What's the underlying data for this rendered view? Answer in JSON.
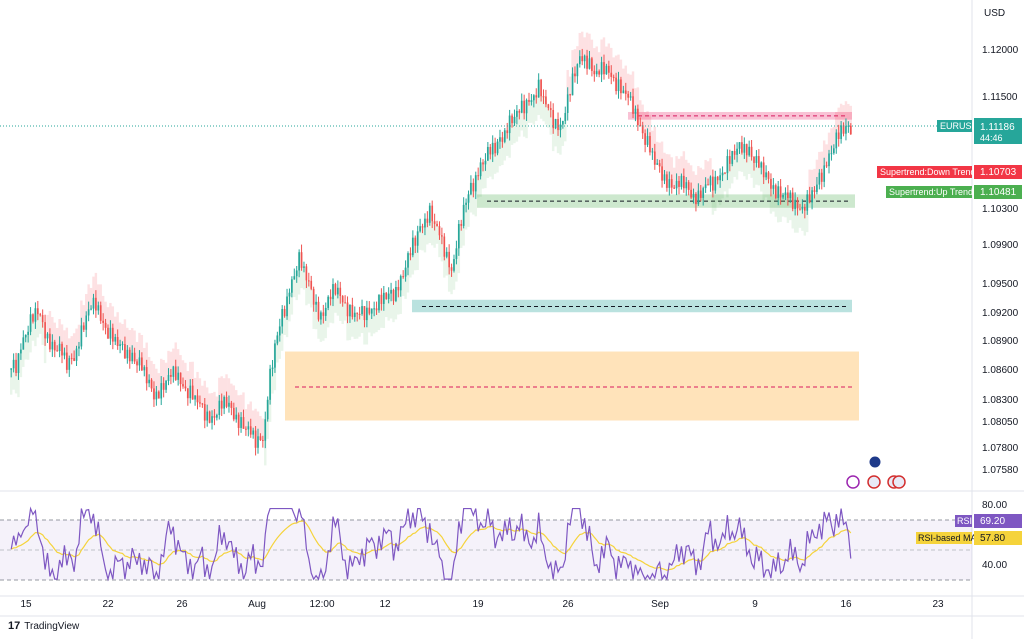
{
  "currency": "USD",
  "footer": {
    "logo": "17",
    "brand": "TradingView"
  },
  "price_axis": {
    "ticks": [
      "1.12000",
      "1.11500",
      "1.10300",
      "1.09900",
      "1.09500",
      "1.09200",
      "1.08900",
      "1.08600",
      "1.08300",
      "1.08050",
      "1.07800",
      "1.07580"
    ]
  },
  "rsi_axis": {
    "ticks": [
      "80.00",
      "40.00"
    ]
  },
  "time_axis": {
    "ticks": [
      "15",
      "22",
      "26",
      "Aug",
      "12:00",
      "12",
      "19",
      "26",
      "Sep",
      "9",
      "16",
      "23"
    ]
  },
  "labels": {
    "symbol": "EURUSD",
    "price": "1.11186",
    "countdown": "44:46",
    "down_trend_name": "Supertrend:Down Trend",
    "down_trend_value": "1.10703",
    "up_trend_name": "Supertrend:Up Trend",
    "up_trend_value": "1.10481",
    "rsi_name": "RSI",
    "rsi_value": "69.20",
    "rsi_ma_name": "RSI-based MA",
    "rsi_ma_value": "57.80"
  },
  "colors": {
    "up": "#26a69a",
    "down": "#ef5350",
    "supertrend_up": "#4caf50",
    "supertrend_down": "#f23645",
    "rsi": "#7e57c2",
    "rsi_ma": "#f5d33b",
    "zone_orange": "#ffe0b2",
    "zone_teal": "#b2dfdb",
    "zone_green": "#c8e6c9",
    "zone_pink": "#f8bbd0"
  },
  "chart_data": {
    "type": "candlestick",
    "symbol": "EURUSD",
    "ylim": [
      1.0752,
      1.123
    ],
    "rsi_ylim": [
      20,
      90
    ],
    "close_series": [
      1.087,
      1.09,
      1.0915,
      1.0925,
      1.0905,
      1.089,
      1.0885,
      1.087,
      1.088,
      1.0905,
      1.0925,
      1.0935,
      1.0915,
      1.09,
      1.089,
      1.0885,
      1.088,
      1.087,
      1.0855,
      1.084,
      1.0845,
      1.0855,
      1.0862,
      1.085,
      1.084,
      1.083,
      1.082,
      1.0815,
      1.0825,
      1.083,
      1.082,
      1.081,
      1.08,
      1.079,
      1.0795,
      1.086,
      1.09,
      1.093,
      1.096,
      1.098,
      1.096,
      1.094,
      1.092,
      1.0935,
      1.095,
      1.094,
      1.0925,
      1.092,
      1.0925,
      1.093,
      1.0935,
      1.094,
      1.0945,
      1.096,
      1.098,
      1.1,
      1.102,
      1.103,
      1.101,
      1.099,
      1.097,
      1.101,
      1.104,
      1.106,
      1.108,
      1.109,
      1.1095,
      1.111,
      1.1125,
      1.113,
      1.114,
      1.115,
      1.116,
      1.114,
      1.1125,
      1.112,
      1.1145,
      1.1175,
      1.1195,
      1.1185,
      1.117,
      1.118,
      1.1175,
      1.116,
      1.115,
      1.114,
      1.112,
      1.11,
      1.108,
      1.107,
      1.106,
      1.1055,
      1.106,
      1.105,
      1.1045,
      1.1055,
      1.106,
      1.107,
      1.108,
      1.109,
      1.11,
      1.1095,
      1.108,
      1.107,
      1.106,
      1.105,
      1.1045,
      1.104,
      1.1035,
      1.104,
      1.105,
      1.107,
      1.109,
      1.1105,
      1.1115,
      1.1118
    ],
    "supertrend_down": {
      "last": 1.10703
    },
    "supertrend_up": {
      "last": 1.10481
    },
    "zones": [
      {
        "color": "orange",
        "top": 1.0884,
        "bottom": 1.0812,
        "mid": 1.0847
      },
      {
        "color": "teal",
        "top": 1.0938,
        "bottom": 1.0925,
        "mid": 1.0931
      },
      {
        "color": "green",
        "top": 1.1048,
        "bottom": 1.1034,
        "mid": 1.1041
      },
      {
        "color": "pink",
        "top": 1.1134,
        "bottom": 1.1126,
        "mid": 1.113
      }
    ],
    "rsi": {
      "name": "RSI",
      "last": 69.2,
      "ma_name": "RSI-based MA",
      "ma_last": 57.8,
      "upper": 70,
      "lower": 30
    }
  }
}
